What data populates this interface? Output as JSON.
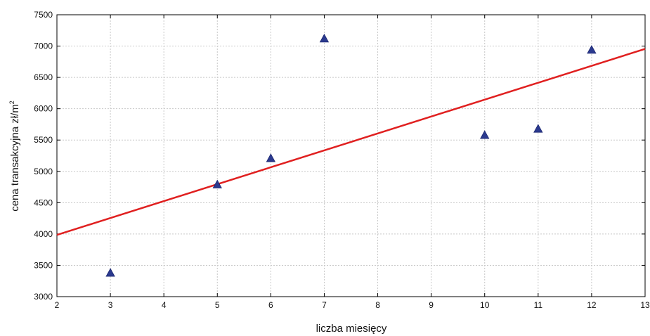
{
  "chart_data": {
    "type": "scatter",
    "title": "",
    "xlabel": "liczba miesięcy",
    "ylabel_main": "cena transakcyjna zł/m",
    "ylabel_sup": "2",
    "xlim": [
      2,
      13
    ],
    "ylim": [
      3000,
      7500
    ],
    "xticks": [
      2,
      3,
      4,
      5,
      6,
      7,
      8,
      9,
      10,
      11,
      12,
      13
    ],
    "yticks": [
      3000,
      3500,
      4000,
      4500,
      5000,
      5500,
      6000,
      6500,
      7000,
      7500
    ],
    "grid": true,
    "series": [
      {
        "marker": "triangle",
        "color": "#2b3a8f",
        "points": [
          {
            "x": 3,
            "y": 3380
          },
          {
            "x": 5,
            "y": 4790
          },
          {
            "x": 6,
            "y": 5210
          },
          {
            "x": 7,
            "y": 7120
          },
          {
            "x": 10,
            "y": 5580
          },
          {
            "x": 11,
            "y": 5680
          },
          {
            "x": 12,
            "y": 6940
          }
        ]
      }
    ],
    "trendline": {
      "type": "linear",
      "color": "#e02020",
      "from": {
        "x": 2,
        "y": 3985
      },
      "to": {
        "x": 13,
        "y": 6955
      }
    }
  }
}
